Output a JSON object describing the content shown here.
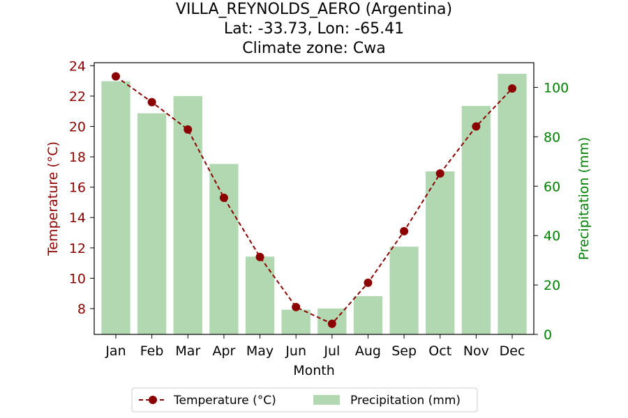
{
  "chart_data": {
    "type": "bar+line",
    "title": [
      "VILLA_REYNOLDS_AERO (Argentina)",
      "Lat: -33.73, Lon: -65.41",
      "Climate zone: Cwa"
    ],
    "xlabel": "Month",
    "ylabel_left": "Temperature (°C)",
    "ylabel_right": "Precipitation (mm)",
    "categories": [
      "Jan",
      "Feb",
      "Mar",
      "Apr",
      "May",
      "Jun",
      "Jul",
      "Aug",
      "Sep",
      "Oct",
      "Nov",
      "Dec"
    ],
    "temperature": {
      "name": "Temperature (°C)",
      "values": [
        23.3,
        21.6,
        19.8,
        15.3,
        11.4,
        8.1,
        7.0,
        9.7,
        13.1,
        16.9,
        20.0,
        22.5
      ],
      "color": "#8b0000",
      "ylim": [
        6.3,
        24.2
      ],
      "ticks": [
        8,
        10,
        12,
        14,
        16,
        18,
        20,
        22,
        24
      ]
    },
    "precipitation": {
      "name": "Precipitation (mm)",
      "values": [
        102.5,
        89.5,
        96.5,
        69.0,
        31.5,
        10.0,
        10.5,
        15.5,
        35.5,
        66.0,
        92.5,
        105.5
      ],
      "color": "#b2d8b2",
      "ylim": [
        0,
        110
      ],
      "ticks": [
        0,
        20,
        40,
        60,
        80,
        100
      ]
    },
    "legend": {
      "position": "bottom-center",
      "entries": [
        "Temperature (°C)",
        "Precipitation (mm)"
      ]
    },
    "grid": false,
    "axis_colors": {
      "left": "#8b0000",
      "right": "#008000"
    }
  }
}
